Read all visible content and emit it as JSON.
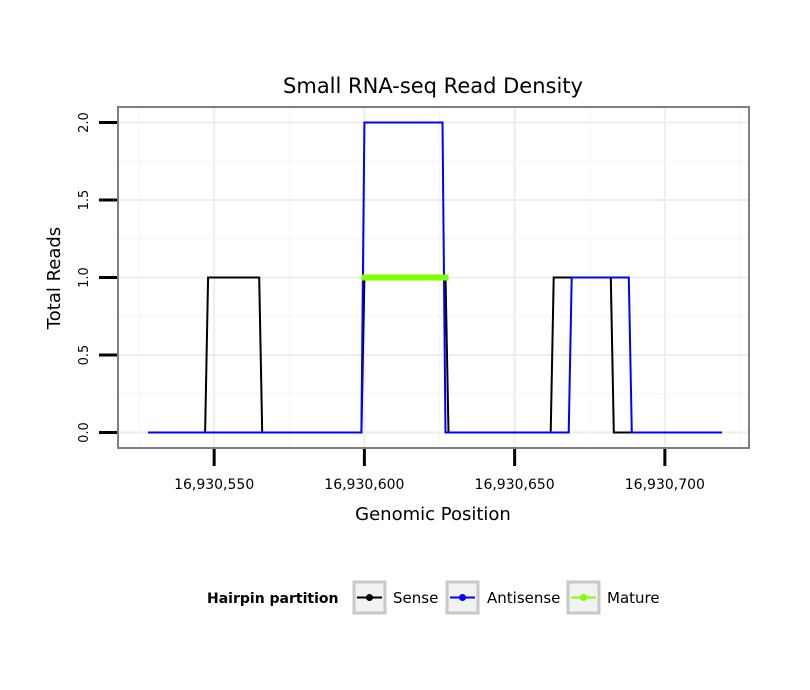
{
  "chart_data": {
    "type": "line",
    "title": "Small RNA-seq Read Density",
    "xlabel": "Genomic Position",
    "ylabel": "Total Reads",
    "xlim": [
      16930518,
      16930728
    ],
    "ylim": [
      -0.1,
      2.1
    ],
    "x_ticks": [
      16930550,
      16930600,
      16930650,
      16930700
    ],
    "x_tick_labels": [
      "16,930,550",
      "16,930,600",
      "16,930,650",
      "16,930,700"
    ],
    "y_ticks": [
      0.0,
      0.5,
      1.0,
      1.5,
      2.0
    ],
    "y_tick_labels": [
      "0.0",
      "0.5",
      "1.0",
      "1.5",
      "2.0"
    ],
    "grid": true,
    "legend": {
      "title": "Hairpin partition",
      "position": "bottom",
      "entries": [
        "Sense",
        "Antisense",
        "Mature"
      ]
    },
    "series": [
      {
        "name": "Sense",
        "color": "#000000",
        "x": [
          16930528,
          16930547,
          16930548,
          16930565,
          16930566,
          16930599,
          16930600,
          16930627,
          16930628,
          16930662,
          16930663,
          16930682,
          16930683,
          16930719
        ],
        "y": [
          0,
          0,
          1,
          1,
          0,
          0,
          1,
          1,
          0,
          0,
          1,
          1,
          0,
          0
        ]
      },
      {
        "name": "Antisense",
        "color": "#0000ff",
        "x": [
          16930528,
          16930599,
          16930600,
          16930626,
          16930627,
          16930668,
          16930669,
          16930688,
          16930689,
          16930719
        ],
        "y": [
          0,
          0,
          2,
          2,
          0,
          0,
          1,
          1,
          0,
          0
        ]
      },
      {
        "name": "Mature",
        "color": "#7fff00",
        "x": [
          16930599,
          16930628
        ],
        "y": [
          1,
          1
        ]
      }
    ]
  }
}
